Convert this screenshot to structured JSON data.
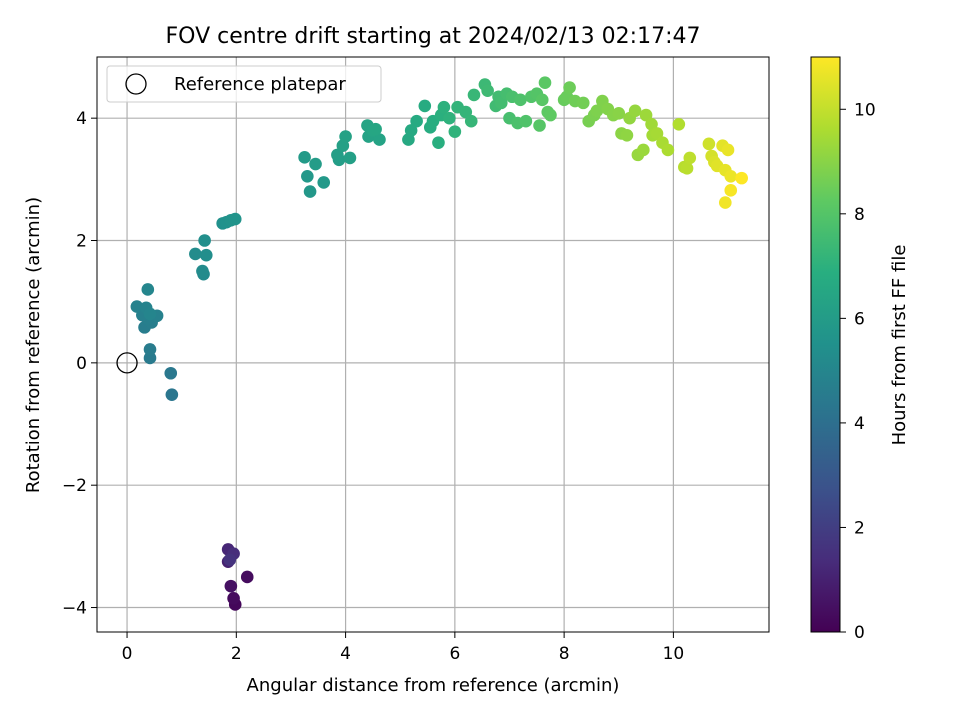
{
  "chart_data": {
    "type": "scatter",
    "title": "FOV centre drift starting at 2024/02/13 02:17:47",
    "xlabel": "Angular distance from reference (arcmin)",
    "ylabel": "Rotation from reference (arcmin)",
    "xlim": [
      -0.55,
      11.75
    ],
    "ylim": [
      -4.4,
      5.0
    ],
    "xticks": [
      0,
      2,
      4,
      6,
      8,
      10
    ],
    "yticks": [
      -4,
      -2,
      0,
      2,
      4
    ],
    "grid": true,
    "legend": {
      "placement": "top-left",
      "entries": [
        "Reference platepar"
      ]
    },
    "reference_point": {
      "x": 0,
      "y": 0
    },
    "colorbar": {
      "label": "Hours from first FF file",
      "range": [
        0,
        11
      ],
      "ticks": [
        0,
        2,
        4,
        6,
        8,
        10
      ],
      "colormap": "viridis"
    },
    "series": [
      {
        "points": [
          {
            "x": 1.98,
            "y": -3.95,
            "t": 0.2
          },
          {
            "x": 1.95,
            "y": -3.85,
            "t": 0.3
          },
          {
            "x": 2.2,
            "y": -3.5,
            "t": 0.35
          },
          {
            "x": 1.9,
            "y": -3.65,
            "t": 0.5
          },
          {
            "x": 1.85,
            "y": -3.25,
            "t": 1.0
          },
          {
            "x": 1.85,
            "y": -3.05,
            "t": 1.2
          },
          {
            "x": 1.95,
            "y": -3.12,
            "t": 1.4
          },
          {
            "x": 1.88,
            "y": -3.22,
            "t": 1.6
          },
          {
            "x": 0.82,
            "y": -0.52,
            "t": 4.3
          },
          {
            "x": 0.8,
            "y": -0.17,
            "t": 4.4
          },
          {
            "x": 0.42,
            "y": 0.08,
            "t": 4.5
          },
          {
            "x": 0.42,
            "y": 0.22,
            "t": 4.55
          },
          {
            "x": 0.32,
            "y": 0.58,
            "t": 4.6
          },
          {
            "x": 0.45,
            "y": 0.66,
            "t": 4.65
          },
          {
            "x": 0.38,
            "y": 0.72,
            "t": 4.7
          },
          {
            "x": 0.28,
            "y": 0.78,
            "t": 4.75
          },
          {
            "x": 0.55,
            "y": 0.77,
            "t": 4.8
          },
          {
            "x": 0.18,
            "y": 0.92,
            "t": 4.85
          },
          {
            "x": 0.35,
            "y": 0.9,
            "t": 4.9
          },
          {
            "x": 0.42,
            "y": 0.8,
            "t": 4.95
          },
          {
            "x": 0.38,
            "y": 1.2,
            "t": 5.0
          },
          {
            "x": 1.4,
            "y": 1.45,
            "t": 5.2
          },
          {
            "x": 1.38,
            "y": 1.5,
            "t": 5.25
          },
          {
            "x": 1.25,
            "y": 1.78,
            "t": 5.3
          },
          {
            "x": 1.45,
            "y": 1.76,
            "t": 5.35
          },
          {
            "x": 1.42,
            "y": 2.0,
            "t": 5.4
          },
          {
            "x": 1.75,
            "y": 2.28,
            "t": 5.5
          },
          {
            "x": 1.82,
            "y": 2.3,
            "t": 5.55
          },
          {
            "x": 1.9,
            "y": 2.33,
            "t": 5.6
          },
          {
            "x": 1.98,
            "y": 2.35,
            "t": 5.65
          },
          {
            "x": 3.35,
            "y": 2.8,
            "t": 5.8
          },
          {
            "x": 3.3,
            "y": 3.05,
            "t": 5.85
          },
          {
            "x": 3.6,
            "y": 2.95,
            "t": 5.9
          },
          {
            "x": 3.25,
            "y": 3.36,
            "t": 5.95
          },
          {
            "x": 3.45,
            "y": 3.25,
            "t": 6.0
          },
          {
            "x": 3.88,
            "y": 3.32,
            "t": 6.05
          },
          {
            "x": 3.85,
            "y": 3.4,
            "t": 6.1
          },
          {
            "x": 4.08,
            "y": 3.35,
            "t": 6.15
          },
          {
            "x": 3.95,
            "y": 3.55,
            "t": 6.2
          },
          {
            "x": 4.0,
            "y": 3.7,
            "t": 6.25
          },
          {
            "x": 4.42,
            "y": 3.7,
            "t": 6.3
          },
          {
            "x": 4.62,
            "y": 3.65,
            "t": 6.35
          },
          {
            "x": 4.4,
            "y": 3.88,
            "t": 6.4
          },
          {
            "x": 4.5,
            "y": 3.8,
            "t": 6.45
          },
          {
            "x": 4.55,
            "y": 3.82,
            "t": 6.5
          },
          {
            "x": 5.15,
            "y": 3.65,
            "t": 6.6
          },
          {
            "x": 5.2,
            "y": 3.8,
            "t": 6.65
          },
          {
            "x": 5.3,
            "y": 3.95,
            "t": 6.7
          },
          {
            "x": 5.45,
            "y": 4.2,
            "t": 6.75
          },
          {
            "x": 5.55,
            "y": 3.85,
            "t": 6.8
          },
          {
            "x": 5.6,
            "y": 3.95,
            "t": 6.85
          },
          {
            "x": 5.7,
            "y": 3.6,
            "t": 6.9
          },
          {
            "x": 5.75,
            "y": 4.05,
            "t": 6.95
          },
          {
            "x": 5.8,
            "y": 4.18,
            "t": 7.0
          },
          {
            "x": 5.9,
            "y": 4.0,
            "t": 7.05
          },
          {
            "x": 6.0,
            "y": 3.78,
            "t": 7.1
          },
          {
            "x": 6.05,
            "y": 4.18,
            "t": 7.15
          },
          {
            "x": 6.2,
            "y": 4.1,
            "t": 7.2
          },
          {
            "x": 6.3,
            "y": 3.95,
            "t": 7.25
          },
          {
            "x": 6.35,
            "y": 4.38,
            "t": 7.3
          },
          {
            "x": 6.55,
            "y": 4.55,
            "t": 7.4
          },
          {
            "x": 6.6,
            "y": 4.45,
            "t": 7.45
          },
          {
            "x": 6.75,
            "y": 4.2,
            "t": 7.5
          },
          {
            "x": 6.8,
            "y": 4.35,
            "t": 7.55
          },
          {
            "x": 6.85,
            "y": 4.25,
            "t": 7.6
          },
          {
            "x": 6.95,
            "y": 4.4,
            "t": 7.65
          },
          {
            "x": 7.0,
            "y": 4.0,
            "t": 7.7
          },
          {
            "x": 7.05,
            "y": 4.35,
            "t": 7.75
          },
          {
            "x": 7.15,
            "y": 3.92,
            "t": 7.8
          },
          {
            "x": 7.2,
            "y": 4.3,
            "t": 7.85
          },
          {
            "x": 7.3,
            "y": 3.95,
            "t": 7.9
          },
          {
            "x": 7.4,
            "y": 4.35,
            "t": 7.95
          },
          {
            "x": 7.5,
            "y": 4.4,
            "t": 8.0
          },
          {
            "x": 7.55,
            "y": 3.88,
            "t": 8.05
          },
          {
            "x": 7.6,
            "y": 4.3,
            "t": 8.1
          },
          {
            "x": 7.65,
            "y": 4.58,
            "t": 8.15
          },
          {
            "x": 7.7,
            "y": 4.1,
            "t": 8.2
          },
          {
            "x": 7.75,
            "y": 4.05,
            "t": 8.25
          },
          {
            "x": 8.0,
            "y": 4.3,
            "t": 8.4
          },
          {
            "x": 8.05,
            "y": 4.35,
            "t": 8.45
          },
          {
            "x": 8.1,
            "y": 4.5,
            "t": 8.5
          },
          {
            "x": 8.2,
            "y": 4.28,
            "t": 8.55
          },
          {
            "x": 8.35,
            "y": 4.25,
            "t": 8.6
          },
          {
            "x": 8.45,
            "y": 3.95,
            "t": 8.7
          },
          {
            "x": 8.55,
            "y": 4.05,
            "t": 8.75
          },
          {
            "x": 8.6,
            "y": 4.12,
            "t": 8.8
          },
          {
            "x": 8.7,
            "y": 4.28,
            "t": 8.85
          },
          {
            "x": 8.8,
            "y": 4.15,
            "t": 8.9
          },
          {
            "x": 8.9,
            "y": 4.05,
            "t": 8.95
          },
          {
            "x": 9.0,
            "y": 4.08,
            "t": 9.0
          },
          {
            "x": 9.05,
            "y": 3.75,
            "t": 9.05
          },
          {
            "x": 9.15,
            "y": 3.72,
            "t": 9.1
          },
          {
            "x": 9.2,
            "y": 4.0,
            "t": 9.15
          },
          {
            "x": 9.3,
            "y": 4.12,
            "t": 9.2
          },
          {
            "x": 9.35,
            "y": 3.4,
            "t": 9.25
          },
          {
            "x": 9.45,
            "y": 3.48,
            "t": 9.3
          },
          {
            "x": 9.5,
            "y": 4.05,
            "t": 9.35
          },
          {
            "x": 9.6,
            "y": 3.9,
            "t": 9.4
          },
          {
            "x": 9.62,
            "y": 3.72,
            "t": 9.45
          },
          {
            "x": 9.7,
            "y": 3.75,
            "t": 9.5
          },
          {
            "x": 9.8,
            "y": 3.6,
            "t": 9.55
          },
          {
            "x": 9.9,
            "y": 3.48,
            "t": 9.6
          },
          {
            "x": 10.1,
            "y": 3.9,
            "t": 9.7
          },
          {
            "x": 10.2,
            "y": 3.2,
            "t": 9.8
          },
          {
            "x": 10.25,
            "y": 3.18,
            "t": 9.85
          },
          {
            "x": 10.3,
            "y": 3.35,
            "t": 9.9
          },
          {
            "x": 10.65,
            "y": 3.58,
            "t": 10.2
          },
          {
            "x": 10.7,
            "y": 3.38,
            "t": 10.3
          },
          {
            "x": 10.75,
            "y": 3.28,
            "t": 10.4
          },
          {
            "x": 10.8,
            "y": 3.22,
            "t": 10.5
          },
          {
            "x": 10.9,
            "y": 3.55,
            "t": 10.55
          },
          {
            "x": 10.95,
            "y": 3.15,
            "t": 10.6
          },
          {
            "x": 11.0,
            "y": 3.48,
            "t": 10.65
          },
          {
            "x": 11.05,
            "y": 3.05,
            "t": 10.7
          },
          {
            "x": 10.95,
            "y": 2.62,
            "t": 10.8
          },
          {
            "x": 11.05,
            "y": 2.82,
            "t": 10.9
          },
          {
            "x": 11.25,
            "y": 3.02,
            "t": 11.0
          }
        ]
      }
    ]
  }
}
